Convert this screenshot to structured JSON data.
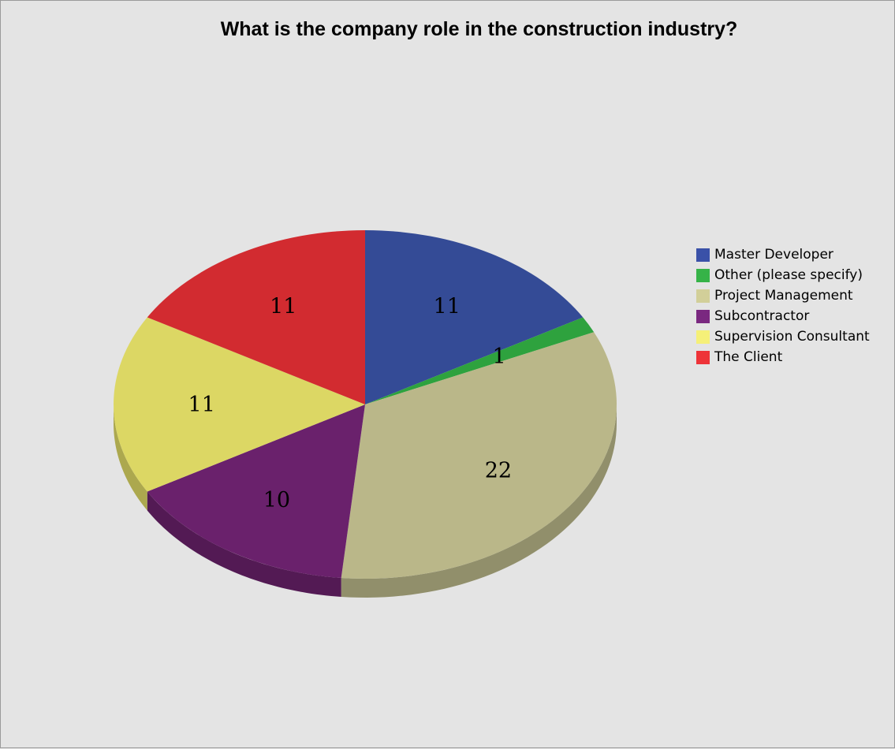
{
  "chart_data": {
    "type": "pie",
    "title": "What is the company role in the construction industry?",
    "slices": [
      {
        "label": "Master Developer",
        "value": 11,
        "color": "#344b96"
      },
      {
        "label": "Other (please specify)",
        "value": 1,
        "color": "#2ea23e"
      },
      {
        "label": "Project Management",
        "value": 22,
        "color": "#bab789"
      },
      {
        "label": "Subcontractor",
        "value": 10,
        "color": "#6a216c"
      },
      {
        "label": "Supervision Consultant",
        "value": 11,
        "color": "#dcd764"
      },
      {
        "label": "The Client",
        "value": 11,
        "color": "#d22b30"
      }
    ],
    "legend": {
      "position": "right",
      "items": [
        {
          "label": "Master Developer",
          "color": "#3a51a8"
        },
        {
          "label": "Other (please specify)",
          "color": "#36b348"
        },
        {
          "label": "Project Management",
          "color": "#d2cf99"
        },
        {
          "label": "Subcontractor",
          "color": "#7a2880"
        },
        {
          "label": "Supervision Consultant",
          "color": "#f5f078"
        },
        {
          "label": "The Client",
          "color": "#ee3338"
        }
      ]
    },
    "style": "3d"
  }
}
